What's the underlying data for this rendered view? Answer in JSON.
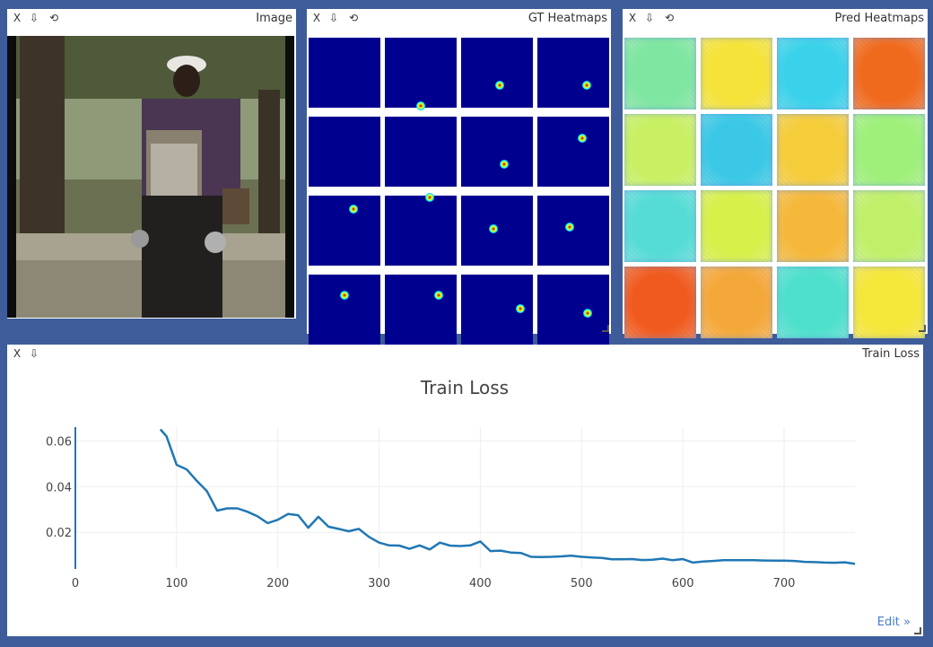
{
  "controls": {
    "close": "X",
    "download": "⇩",
    "reset": "⟲",
    "edit": "Edit »"
  },
  "panes": {
    "image": {
      "title": "Image"
    },
    "gt": {
      "title": "GT Heatmaps"
    },
    "pred": {
      "title": "Pred Heatmaps"
    },
    "loss": {
      "title": "Train Loss"
    }
  },
  "gt_heatmaps": {
    "grid": "4x4",
    "background": "#00008f",
    "keypoint_present": [
      true,
      true,
      true,
      true,
      true,
      true,
      true,
      true,
      true,
      true,
      true,
      true,
      true,
      true,
      true,
      true
    ]
  },
  "pred_heatmaps": {
    "grid": "4x4",
    "dominant_colors": [
      "#7ee6a0",
      "#f5e33a",
      "#3ad2ea",
      "#f06a1e",
      "#c8f062",
      "#3ac8e6",
      "#f5cc3a",
      "#9ef07a",
      "#56dcd6",
      "#d8f04a",
      "#f5b83a",
      "#c0f06a",
      "#f05a1e",
      "#f5a83a",
      "#4ee0cc",
      "#f5e63a"
    ]
  },
  "chart_data": {
    "type": "line",
    "title": "Train Loss",
    "xlabel": "",
    "ylabel": "",
    "xlim": [
      0,
      770
    ],
    "ylim": [
      0.004,
      0.066
    ],
    "xticks": [
      "0",
      "100",
      "200",
      "300",
      "400",
      "500",
      "600",
      "700"
    ],
    "yticks": [
      "0.02",
      "0.04",
      "0.06"
    ],
    "grid": true,
    "series": [
      {
        "color": "#1f77b4",
        "x": [
          84,
          90,
          100,
          110,
          120,
          130,
          140,
          150,
          160,
          170,
          180,
          190,
          200,
          210,
          220,
          230,
          240,
          250,
          260,
          270,
          280,
          290,
          300,
          310,
          320,
          330,
          340,
          350,
          360,
          370,
          380,
          390,
          400,
          410,
          420,
          430,
          440,
          450,
          460,
          470,
          480,
          490,
          500,
          510,
          520,
          530,
          540,
          550,
          560,
          570,
          580,
          590,
          600,
          610,
          620,
          630,
          640,
          650,
          660,
          670,
          680,
          690,
          700,
          710,
          720,
          730,
          740,
          750,
          760,
          770
        ],
        "y": [
          0.065,
          0.062,
          0.0495,
          0.0475,
          0.0425,
          0.038,
          0.0295,
          0.0305,
          0.0305,
          0.029,
          0.027,
          0.024,
          0.0255,
          0.028,
          0.0275,
          0.022,
          0.0268,
          0.0225,
          0.0215,
          0.0205,
          0.0215,
          0.018,
          0.0155,
          0.0143,
          0.0142,
          0.0128,
          0.0143,
          0.0125,
          0.0155,
          0.0142,
          0.014,
          0.0143,
          0.016,
          0.0118,
          0.012,
          0.0112,
          0.011,
          0.0093,
          0.0092,
          0.0093,
          0.0095,
          0.0098,
          0.0093,
          0.009,
          0.0088,
          0.0082,
          0.0082,
          0.0083,
          0.0079,
          0.008,
          0.0085,
          0.0078,
          0.0083,
          0.0068,
          0.0072,
          0.0075,
          0.0078,
          0.0078,
          0.0078,
          0.0078,
          0.0077,
          0.0076,
          0.0076,
          0.0075,
          0.0071,
          0.007,
          0.0068,
          0.0067,
          0.0069,
          0.0062
        ]
      }
    ]
  }
}
